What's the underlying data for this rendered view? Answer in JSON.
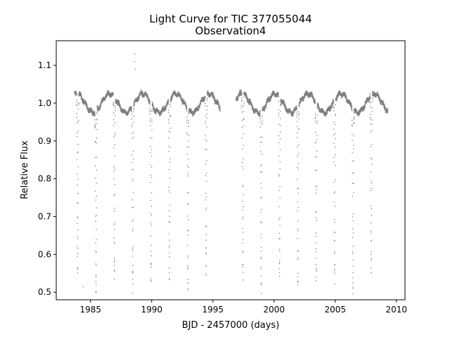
{
  "chart_data": {
    "type": "scatter",
    "title": "Light Curve for TIC 377055044",
    "subtitle": "Observation4",
    "xlabel": "BJD - 2457000 (days)",
    "ylabel": "Relative Flux",
    "xlim": [
      1982.2,
      2010.7
    ],
    "ylim": [
      0.48,
      1.165
    ],
    "xticks": [
      1985,
      1990,
      1995,
      2000,
      2005,
      2010
    ],
    "yticks": [
      0.5,
      0.6,
      0.7,
      0.8,
      0.9,
      1.0,
      1.1
    ],
    "ytick_labels": [
      "0.5",
      "0.6",
      "0.7",
      "0.8",
      "0.9",
      "1.0",
      "1.1"
    ],
    "grid": false,
    "point_color": "#7f7f7f",
    "segments": [
      {
        "x_start": 1983.7,
        "x_end": 1995.6
      },
      {
        "x_start": 1996.9,
        "x_end": 2009.3
      }
    ],
    "baseline_level": 1.0,
    "baseline_amplitude": 0.025,
    "baseline_period_days": 2.7,
    "eclipse_period_days": 1.5,
    "eclipse_first_epoch": 1983.95,
    "eclipse_min_flux": 0.52,
    "outliers": [
      {
        "x": 1988.6,
        "y": 1.13
      },
      {
        "x": 1988.6,
        "y": 1.11
      },
      {
        "x": 1988.65,
        "y": 1.09
      },
      {
        "x": 1984.4,
        "y": 0.515
      }
    ]
  }
}
